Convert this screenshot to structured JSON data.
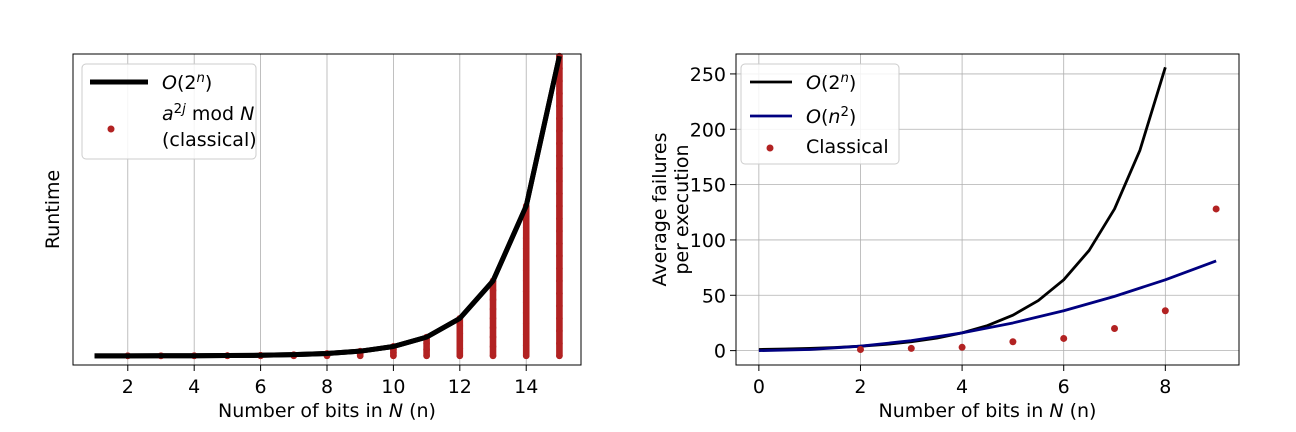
{
  "chart_data": [
    {
      "type": "line",
      "xlabel": "Number of bits in N (n)",
      "ylabel": "Runtime",
      "xlim": [
        0.35,
        15.65
      ],
      "ylim": [
        -1000,
        33000
      ],
      "xticks": [
        2,
        4,
        6,
        8,
        10,
        12,
        14
      ],
      "yticks": [],
      "grid": true,
      "legend_position": "top-left",
      "series": [
        {
          "name": "O(2^n)",
          "kind": "line",
          "color": "#000000",
          "x": [
            1,
            2,
            3,
            4,
            5,
            6,
            7,
            8,
            9,
            10,
            11,
            12,
            13,
            14,
            15
          ],
          "y": [
            2,
            4,
            8,
            16,
            32,
            64,
            128,
            256,
            512,
            1024,
            2048,
            4096,
            8192,
            16384,
            32768
          ]
        },
        {
          "name": "a^2j mod N (classical)",
          "kind": "scatter-stack",
          "color": "#b22222",
          "x": [
            2,
            3,
            4,
            5,
            6,
            7,
            8,
            9,
            10,
            11,
            12,
            13,
            14,
            15
          ],
          "y_max": [
            4,
            8,
            16,
            32,
            64,
            128,
            256,
            512,
            1024,
            2048,
            4096,
            8192,
            16384,
            32768
          ]
        }
      ],
      "legend": [
        "O(2^n)",
        "a^2j mod N (classical)"
      ]
    },
    {
      "type": "line",
      "xlabel": "Number of bits in N (n)",
      "ylabel": "Average failures per execution",
      "xlim": [
        -0.45,
        9.45
      ],
      "ylim": [
        -13,
        268
      ],
      "xticks": [
        0,
        2,
        4,
        6,
        8
      ],
      "yticks": [
        0,
        50,
        100,
        150,
        200,
        250
      ],
      "grid": true,
      "legend_position": "top-left",
      "series": [
        {
          "name": "O(2^n)",
          "kind": "line",
          "color": "#000000",
          "x": [
            0,
            0.5,
            1,
            1.5,
            2,
            2.5,
            3,
            3.5,
            4,
            4.5,
            5,
            5.5,
            6,
            6.5,
            7,
            7.5,
            8
          ],
          "y": [
            1,
            1.41,
            2,
            2.83,
            4,
            5.66,
            8,
            11.31,
            16,
            22.63,
            32,
            45.25,
            64,
            90.51,
            128,
            181.02,
            256
          ]
        },
        {
          "name": "O(n^2)",
          "kind": "line",
          "color": "#000080",
          "x": [
            0,
            1,
            2,
            3,
            4,
            5,
            6,
            7,
            8,
            9
          ],
          "y": [
            0,
            1,
            4,
            9,
            16,
            25,
            36,
            49,
            64,
            81
          ]
        },
        {
          "name": "Classical",
          "kind": "scatter",
          "color": "#b22222",
          "x": [
            2,
            3,
            4,
            5,
            6,
            7,
            8,
            9
          ],
          "y": [
            1,
            2,
            3,
            8,
            11,
            20,
            36,
            128
          ]
        }
      ],
      "legend": [
        "O(2^n)",
        "O(n^2)",
        "Classical"
      ]
    }
  ]
}
